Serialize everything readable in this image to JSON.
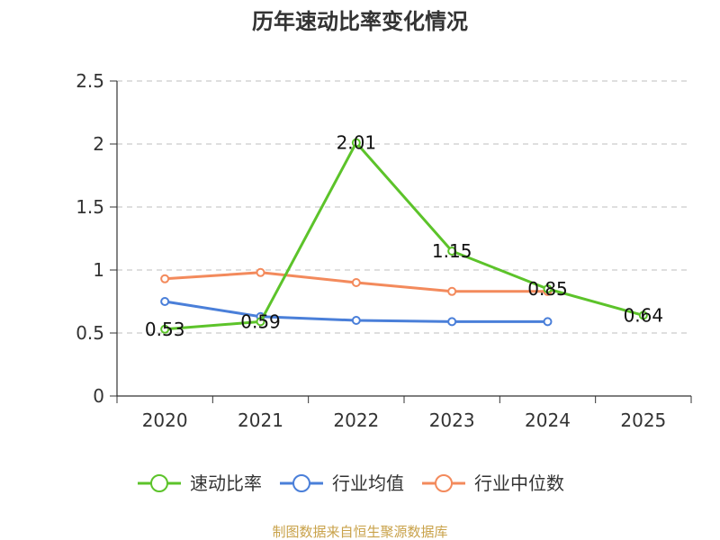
{
  "chart_data": {
    "type": "line",
    "title": "历年速动比率变化情况",
    "categories": [
      "2020",
      "2021",
      "2022",
      "2023",
      "2024",
      "2025"
    ],
    "ylim": [
      0,
      2.5
    ],
    "yticks": [
      0,
      0.5,
      1,
      1.5,
      2,
      2.5
    ],
    "ytick_labels": [
      "0",
      "0.5",
      "1",
      "1.5",
      "2",
      "2.5"
    ],
    "grid": true,
    "legend_position": "bottom",
    "series": [
      {
        "name": "速动比率",
        "color": "#5cc32a",
        "values": [
          0.53,
          0.59,
          2.01,
          1.15,
          0.85,
          0.64
        ],
        "labels": [
          "0.53",
          "0.59",
          "2.01",
          "1.15",
          "0.85",
          "0.64"
        ]
      },
      {
        "name": "行业均值",
        "color": "#4a7fd9",
        "values": [
          0.75,
          0.63,
          0.6,
          0.59,
          0.59,
          null
        ]
      },
      {
        "name": "行业中位数",
        "color": "#f38a5c",
        "values": [
          0.93,
          0.98,
          0.9,
          0.83,
          0.83,
          null
        ]
      }
    ],
    "source_note": "制图数据来自恒生聚源数据库"
  }
}
